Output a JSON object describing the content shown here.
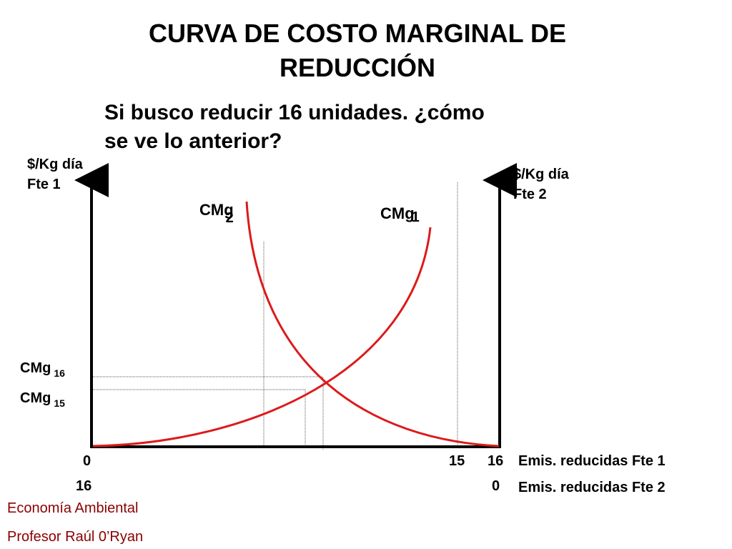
{
  "title_line1": "CURVA DE COSTO MARGINAL DE",
  "title_line2": "REDUCCIÓN",
  "subtitle_line1": "Si busco reducir 16 unidades. ¿cómo",
  "subtitle_line2": "se ve lo anterior?",
  "left_axis": {
    "line1": "$/Kg día",
    "line2": "Fte 1"
  },
  "right_axis": {
    "line1": "$/Kg día",
    "line2": "Fte 2"
  },
  "curves": {
    "cmg2": {
      "label": "CMg",
      "sub": "2"
    },
    "cmg1": {
      "label": "CMg",
      "sub": "1"
    }
  },
  "levels": {
    "cmg16": {
      "label": "CMg",
      "sub": "16"
    },
    "cmg15": {
      "label": "CMg",
      "sub": "15"
    }
  },
  "x_ticks_fte1": {
    "zero": "0",
    "fifteen": "15",
    "sixteen": "16"
  },
  "x_ticks_fte2": {
    "sixteen": "16",
    "zero": "0"
  },
  "x_captions": {
    "fte1": "Emis. reducidas Fte 1",
    "fte2": "Emis. reducidas Fte 2"
  },
  "footer": {
    "line1": "Economía Ambiental",
    "line2": "Profesor Raúl 0’Ryan"
  },
  "colors": {
    "curve": "#dd1a1a",
    "axis": "#000000",
    "guide": "#555555",
    "footer": "#8b0000"
  }
}
